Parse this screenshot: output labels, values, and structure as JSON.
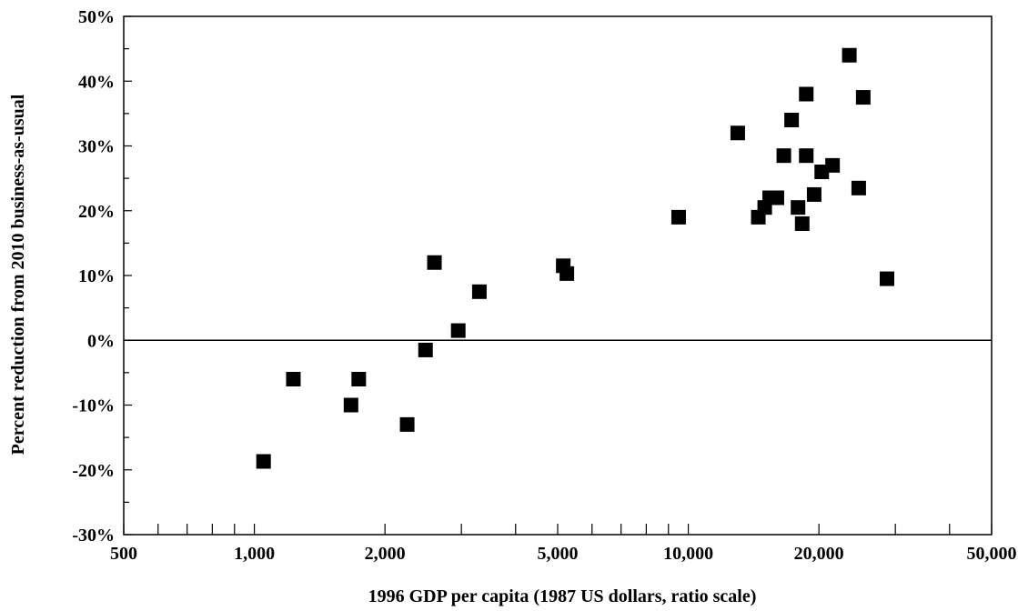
{
  "chart_data": {
    "type": "scatter",
    "title": "",
    "xlabel": "1996 GDP per capita (1987 US dollars, ratio scale)",
    "ylabel": "Percent reduction from 2010 business-as-usual",
    "x_scale": "log",
    "xlim": [
      500,
      50000
    ],
    "ylim": [
      -30,
      50
    ],
    "x_tick_values": [
      500,
      1000,
      2000,
      5000,
      10000,
      20000,
      50000
    ],
    "x_tick_labels": [
      "500",
      "1,000",
      "2,000",
      "5,000",
      "10,000",
      "20,000",
      "50,000"
    ],
    "y_tick_values": [
      -30,
      -20,
      -10,
      0,
      10,
      20,
      30,
      40,
      50
    ],
    "y_tick_labels": [
      "-30%",
      "-20%",
      "-10%",
      "0%",
      "10%",
      "20%",
      "30%",
      "40%",
      "50%"
    ],
    "marker": "square",
    "marker_color": "#000000",
    "grid": false,
    "zero_line": true,
    "points": [
      {
        "x": 1050,
        "y": -18.7
      },
      {
        "x": 1230,
        "y": -6.0
      },
      {
        "x": 1670,
        "y": -10.0
      },
      {
        "x": 1740,
        "y": -6.0
      },
      {
        "x": 2250,
        "y": -13.0
      },
      {
        "x": 2480,
        "y": -1.5
      },
      {
        "x": 2600,
        "y": 12.0
      },
      {
        "x": 2950,
        "y": 1.5
      },
      {
        "x": 3300,
        "y": 7.5
      },
      {
        "x": 5150,
        "y": 11.5
      },
      {
        "x": 5250,
        "y": 10.3
      },
      {
        "x": 9500,
        "y": 19.0
      },
      {
        "x": 13000,
        "y": 32.0
      },
      {
        "x": 14500,
        "y": 19.0
      },
      {
        "x": 15000,
        "y": 20.5
      },
      {
        "x": 15400,
        "y": 22.0
      },
      {
        "x": 16000,
        "y": 22.0
      },
      {
        "x": 16600,
        "y": 28.5
      },
      {
        "x": 17300,
        "y": 34.0
      },
      {
        "x": 17900,
        "y": 20.5
      },
      {
        "x": 18300,
        "y": 18.0
      },
      {
        "x": 18700,
        "y": 28.5
      },
      {
        "x": 18700,
        "y": 38.0
      },
      {
        "x": 19500,
        "y": 22.5
      },
      {
        "x": 20300,
        "y": 26.0
      },
      {
        "x": 21500,
        "y": 27.0
      },
      {
        "x": 23500,
        "y": 44.0
      },
      {
        "x": 24700,
        "y": 23.5
      },
      {
        "x": 25300,
        "y": 37.5
      },
      {
        "x": 28700,
        "y": 9.5
      }
    ]
  }
}
